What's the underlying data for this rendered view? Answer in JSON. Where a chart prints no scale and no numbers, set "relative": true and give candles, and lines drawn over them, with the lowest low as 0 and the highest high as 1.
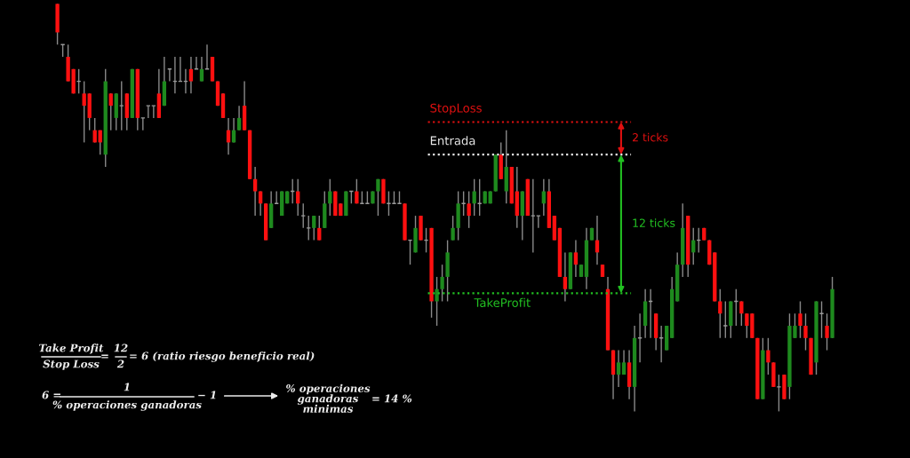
{
  "chart_data": {
    "type": "candlestick",
    "relative": true,
    "categories": [
      null,
      null,
      null,
      null,
      null,
      null,
      null,
      null,
      null,
      null,
      null,
      null,
      null,
      null,
      null,
      null,
      null,
      null,
      null,
      null,
      null,
      null,
      null,
      null,
      null,
      null,
      null,
      null,
      null,
      null,
      null,
      null,
      null,
      null,
      null,
      null,
      null,
      null,
      null,
      null,
      null,
      null,
      null,
      null,
      null,
      null,
      null,
      null,
      null,
      null,
      null,
      null,
      null,
      null,
      null,
      null,
      null,
      null,
      null,
      null,
      null,
      null,
      null,
      null,
      null,
      null,
      null,
      null,
      null,
      null,
      null,
      null,
      null,
      null,
      null,
      null,
      null,
      null,
      null,
      null,
      null,
      null,
      null,
      null,
      null,
      null,
      null,
      null,
      null,
      null,
      null,
      null,
      null,
      null,
      null,
      null,
      null,
      null,
      null,
      null,
      null,
      null,
      null,
      null,
      null,
      null,
      null,
      null,
      null,
      null,
      null,
      null,
      null,
      null,
      null,
      null,
      null,
      null,
      null,
      null,
      null,
      null,
      null,
      null,
      null,
      null,
      null,
      null,
      null,
      null,
      null,
      null,
      null,
      null,
      null,
      null,
      null,
      null,
      null,
      null,
      null,
      null,
      null,
      null,
      null,
      null
    ],
    "ohlc": [
      [
        1.0,
        1.0,
        0.9,
        0.93
      ],
      [
        0.9,
        0.9,
        0.87,
        0.9
      ],
      [
        0.87,
        0.9,
        0.81,
        0.81
      ],
      [
        0.84,
        0.84,
        0.78,
        0.78
      ],
      [
        0.81,
        0.84,
        0.78,
        0.81
      ],
      [
        0.78,
        0.81,
        0.66,
        0.75
      ],
      [
        0.78,
        0.78,
        0.69,
        0.72
      ],
      [
        0.69,
        0.72,
        0.66,
        0.66
      ],
      [
        0.69,
        0.69,
        0.63,
        0.66
      ],
      [
        0.63,
        0.84,
        0.6,
        0.81
      ],
      [
        0.78,
        0.78,
        0.69,
        0.75
      ],
      [
        0.72,
        0.78,
        0.69,
        0.78
      ],
      [
        0.75,
        0.81,
        0.69,
        0.75
      ],
      [
        0.78,
        0.78,
        0.69,
        0.72
      ],
      [
        0.72,
        0.84,
        0.72,
        0.84
      ],
      [
        0.84,
        0.84,
        0.69,
        0.72
      ],
      [
        0.72,
        0.72,
        0.69,
        0.72
      ],
      [
        0.75,
        0.75,
        0.72,
        0.75
      ],
      [
        0.75,
        0.75,
        0.72,
        0.75
      ],
      [
        0.78,
        0.84,
        0.72,
        0.72
      ],
      [
        0.75,
        0.87,
        0.75,
        0.81
      ],
      [
        0.84,
        0.84,
        0.81,
        0.84
      ],
      [
        0.81,
        0.87,
        0.78,
        0.81
      ],
      [
        0.81,
        0.87,
        0.81,
        0.81
      ],
      [
        0.81,
        0.84,
        0.78,
        0.81
      ],
      [
        0.84,
        0.87,
        0.78,
        0.81
      ],
      [
        0.84,
        0.87,
        0.84,
        0.84
      ],
      [
        0.81,
        0.87,
        0.81,
        0.84
      ],
      [
        0.84,
        0.9,
        0.84,
        0.84
      ],
      [
        0.87,
        0.87,
        0.81,
        0.81
      ],
      [
        0.81,
        0.81,
        0.75,
        0.75
      ],
      [
        0.78,
        0.78,
        0.72,
        0.72
      ],
      [
        0.69,
        0.72,
        0.63,
        0.66
      ],
      [
        0.66,
        0.72,
        0.66,
        0.69
      ],
      [
        0.69,
        0.75,
        0.69,
        0.72
      ],
      [
        0.75,
        0.81,
        0.69,
        0.69
      ],
      [
        0.69,
        0.69,
        0.57,
        0.57
      ],
      [
        0.57,
        0.6,
        0.48,
        0.54
      ],
      [
        0.54,
        0.54,
        0.48,
        0.51
      ],
      [
        0.51,
        0.51,
        0.42,
        0.42
      ],
      [
        0.45,
        0.54,
        0.45,
        0.51
      ],
      [
        0.51,
        0.54,
        0.51,
        0.51
      ],
      [
        0.48,
        0.54,
        0.48,
        0.54
      ],
      [
        0.51,
        0.54,
        0.51,
        0.54
      ],
      [
        0.54,
        0.57,
        0.51,
        0.54
      ],
      [
        0.54,
        0.57,
        0.48,
        0.51
      ],
      [
        0.48,
        0.51,
        0.45,
        0.48
      ],
      [
        0.45,
        0.48,
        0.42,
        0.45
      ],
      [
        0.45,
        0.48,
        0.42,
        0.48
      ],
      [
        0.45,
        0.48,
        0.42,
        0.42
      ],
      [
        0.45,
        0.54,
        0.45,
        0.51
      ],
      [
        0.51,
        0.57,
        0.48,
        0.54
      ],
      [
        0.54,
        0.54,
        0.48,
        0.48
      ],
      [
        0.51,
        0.51,
        0.48,
        0.48
      ],
      [
        0.48,
        0.54,
        0.48,
        0.54
      ],
      [
        0.54,
        0.54,
        0.51,
        0.54
      ],
      [
        0.54,
        0.57,
        0.51,
        0.51
      ],
      [
        0.51,
        0.54,
        0.51,
        0.51
      ],
      [
        0.51,
        0.54,
        0.51,
        0.51
      ],
      [
        0.51,
        0.54,
        0.51,
        0.54
      ],
      [
        0.54,
        0.57,
        0.48,
        0.57
      ],
      [
        0.57,
        0.57,
        0.51,
        0.51
      ],
      [
        0.51,
        0.54,
        0.48,
        0.51
      ],
      [
        0.51,
        0.54,
        0.51,
        0.51
      ],
      [
        0.51,
        0.54,
        0.51,
        0.51
      ],
      [
        0.51,
        0.51,
        0.42,
        0.42
      ],
      [
        0.42,
        0.42,
        0.36,
        0.42
      ],
      [
        0.39,
        0.48,
        0.39,
        0.45
      ],
      [
        0.48,
        0.48,
        0.42,
        0.42
      ],
      [
        0.42,
        0.45,
        0.39,
        0.42
      ],
      [
        0.45,
        0.45,
        0.23,
        0.27
      ],
      [
        0.27,
        0.33,
        0.21,
        0.3
      ],
      [
        0.3,
        0.36,
        0.27,
        0.33
      ],
      [
        0.33,
        0.42,
        0.27,
        0.39
      ],
      [
        0.42,
        0.48,
        0.42,
        0.45
      ],
      [
        0.45,
        0.54,
        0.42,
        0.51
      ],
      [
        0.51,
        0.54,
        0.48,
        0.51
      ],
      [
        0.51,
        0.54,
        0.45,
        0.48
      ],
      [
        0.51,
        0.57,
        0.48,
        0.54
      ],
      [
        0.51,
        0.57,
        0.48,
        0.51
      ],
      [
        0.51,
        0.54,
        0.51,
        0.54
      ],
      [
        0.51,
        0.54,
        0.51,
        0.54
      ],
      [
        0.54,
        0.63,
        0.54,
        0.63
      ],
      [
        0.63,
        0.66,
        0.57,
        0.57
      ],
      [
        0.54,
        0.69,
        0.51,
        0.6
      ],
      [
        0.6,
        0.6,
        0.51,
        0.51
      ],
      [
        0.54,
        0.6,
        0.45,
        0.48
      ],
      [
        0.48,
        0.54,
        0.42,
        0.54
      ],
      [
        0.57,
        0.57,
        0.48,
        0.48
      ],
      [
        0.48,
        0.57,
        0.39,
        0.48
      ],
      [
        0.48,
        0.48,
        0.45,
        0.48
      ],
      [
        0.51,
        0.57,
        0.48,
        0.54
      ],
      [
        0.54,
        0.57,
        0.45,
        0.45
      ],
      [
        0.48,
        0.48,
        0.42,
        0.42
      ],
      [
        0.45,
        0.45,
        0.33,
        0.33
      ],
      [
        0.33,
        0.39,
        0.27,
        0.3
      ],
      [
        0.3,
        0.39,
        0.3,
        0.39
      ],
      [
        0.39,
        0.42,
        0.33,
        0.36
      ],
      [
        0.33,
        0.36,
        0.33,
        0.36
      ],
      [
        0.33,
        0.45,
        0.3,
        0.42
      ],
      [
        0.42,
        0.45,
        0.42,
        0.45
      ],
      [
        0.42,
        0.48,
        0.36,
        0.39
      ],
      [
        0.36,
        0.36,
        0.33,
        0.33
      ],
      [
        0.3,
        0.33,
        0.15,
        0.15
      ],
      [
        0.15,
        0.15,
        0.03,
        0.09
      ],
      [
        0.09,
        0.15,
        0.06,
        0.12
      ],
      [
        0.09,
        0.15,
        0.09,
        0.12
      ],
      [
        0.12,
        0.15,
        0.03,
        0.06
      ],
      [
        0.06,
        0.21,
        0.0,
        0.18
      ],
      [
        0.18,
        0.24,
        0.12,
        0.18
      ],
      [
        0.21,
        0.3,
        0.18,
        0.27
      ],
      [
        0.27,
        0.3,
        0.18,
        0.27
      ],
      [
        0.24,
        0.24,
        0.15,
        0.18
      ],
      [
        0.18,
        0.21,
        0.12,
        0.18
      ],
      [
        0.15,
        0.21,
        0.15,
        0.21
      ],
      [
        0.18,
        0.33,
        0.18,
        0.3
      ],
      [
        0.27,
        0.39,
        0.27,
        0.36
      ],
      [
        0.36,
        0.51,
        0.33,
        0.45
      ],
      [
        0.48,
        0.48,
        0.33,
        0.36
      ],
      [
        0.39,
        0.45,
        0.36,
        0.42
      ],
      [
        0.42,
        0.45,
        0.39,
        0.42
      ],
      [
        0.45,
        0.45,
        0.42,
        0.42
      ],
      [
        0.42,
        0.42,
        0.36,
        0.36
      ],
      [
        0.39,
        0.39,
        0.27,
        0.27
      ],
      [
        0.27,
        0.3,
        0.18,
        0.24
      ],
      [
        0.21,
        0.27,
        0.18,
        0.21
      ],
      [
        0.21,
        0.27,
        0.18,
        0.27
      ],
      [
        0.27,
        0.3,
        0.21,
        0.27
      ],
      [
        0.27,
        0.27,
        0.21,
        0.24
      ],
      [
        0.24,
        0.24,
        0.18,
        0.21
      ],
      [
        0.24,
        0.24,
        0.18,
        0.18
      ],
      [
        0.18,
        0.18,
        0.03,
        0.03
      ],
      [
        0.03,
        0.18,
        0.03,
        0.15
      ],
      [
        0.15,
        0.18,
        0.09,
        0.12
      ],
      [
        0.12,
        0.12,
        0.06,
        0.06
      ],
      [
        0.06,
        0.09,
        0.0,
        0.06
      ],
      [
        0.09,
        0.09,
        0.03,
        0.03
      ],
      [
        0.06,
        0.24,
        0.03,
        0.21
      ],
      [
        0.18,
        0.24,
        0.18,
        0.21
      ],
      [
        0.24,
        0.27,
        0.18,
        0.21
      ],
      [
        0.21,
        0.24,
        0.15,
        0.18
      ],
      [
        0.18,
        0.18,
        0.09,
        0.09
      ],
      [
        0.12,
        0.27,
        0.09,
        0.27
      ],
      [
        0.24,
        0.27,
        0.18,
        0.24
      ],
      [
        0.21,
        0.24,
        0.15,
        0.18
      ],
      [
        0.18,
        0.33,
        0.18,
        0.3
      ]
    ],
    "ref_lines": [
      {
        "axis": "y",
        "value": 0.71,
        "label": "StopLoss",
        "color": "#e01010",
        "line_style": "dotted"
      },
      {
        "axis": "y",
        "value": 0.63,
        "label": "Entrada",
        "color": "#e8e8e8",
        "line_style": "dotted"
      },
      {
        "axis": "y",
        "value": 0.29,
        "label": "TakeProfit",
        "color": "#22c022",
        "line_style": "dotted"
      }
    ],
    "annotations": [
      "2 ticks",
      "12 ticks",
      "Take Profit",
      "Stop Loss",
      "=",
      "12",
      "2",
      "= 6 (ratio riesgo beneficio real)",
      "6 =",
      "1",
      "% operaciones ganadoras",
      "− 1",
      "% operaciones\nganadoras\nminimas",
      "= 14 %"
    ]
  }
}
